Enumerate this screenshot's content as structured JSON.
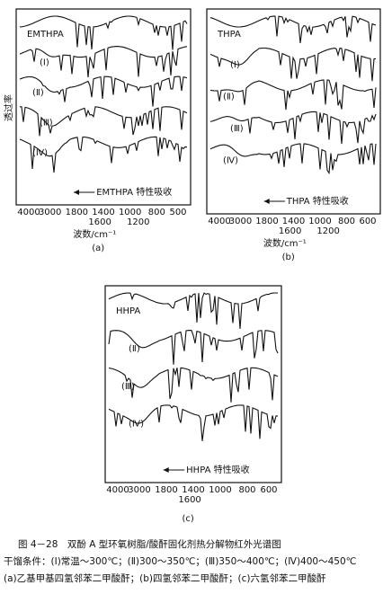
{
  "y_label": "透过率",
  "panels": [
    {
      "name": "EMTHPA",
      "curve_labels": [
        "(Ⅰ)",
        "(Ⅱ)",
        "(Ⅲ)",
        "(Ⅳ)"
      ],
      "annotation": "EMTHPA 特性吸收",
      "xticks": [
        "4000",
        "3000",
        "1800",
        "1400",
        "1000",
        "800",
        "500"
      ],
      "xticks_row2": [
        "1600",
        "1200"
      ],
      "x_label": "波数/cm⁻¹",
      "letter": "(a)"
    },
    {
      "name": "THPA",
      "curve_labels": [
        "(Ⅰ)",
        "(Ⅱ)",
        "(Ⅲ)",
        "(Ⅳ)"
      ],
      "annotation": "THPA 特性吸收",
      "xticks": [
        "4000",
        "3000",
        "1800",
        "1400",
        "1000",
        "800",
        "600"
      ],
      "xticks_row2": [
        "1600",
        "1200"
      ],
      "x_label": "波数/cm⁻¹",
      "letter": "(b)"
    },
    {
      "name": "HHPA",
      "curve_labels": [
        "(Ⅱ)",
        "(Ⅲ)",
        "(Ⅳ)"
      ],
      "annotation": "HHPA 特性吸收",
      "xticks": [
        "4000",
        "3000",
        "1800",
        "1400",
        "1000",
        "800",
        "600"
      ],
      "xticks_row2": [
        "1600"
      ],
      "x_label": "",
      "letter": "(c)"
    }
  ],
  "caption": {
    "title": "图 4－28　双酚 A 型环氧树脂/酸酐固化剂热分解物红外光谱图",
    "conditions": "干馏条件：(Ⅰ)常温～300℃；(Ⅱ)300～350℃；(Ⅲ)350～400℃；(Ⅳ)400～450℃",
    "legend": "(a)乙基甲基四氢邻苯二甲酸酐；(b)四氢邻苯二甲酸酐；(c)六氢邻苯二甲酸酐"
  }
}
